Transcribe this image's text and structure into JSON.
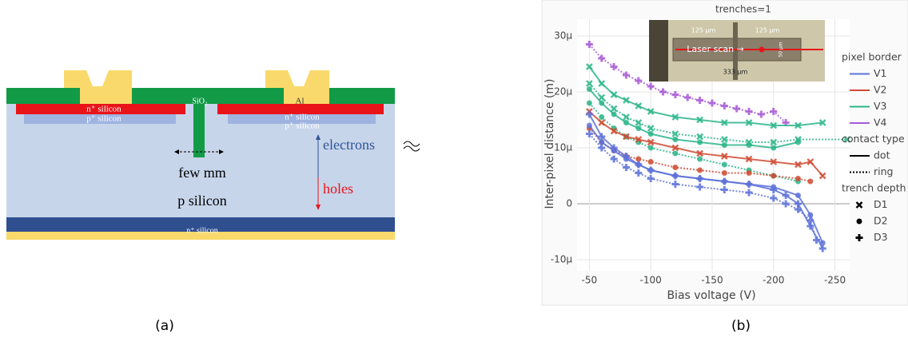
{
  "diagram": {
    "labels": [
      "SiO₂",
      "Al",
      "n⁺ silicon",
      "p⁺ silicon",
      "n⁺ silicon",
      "p⁺ silicon",
      "few mm",
      "electrons",
      "holes",
      "p silicon",
      "n⁺ silicon"
    ]
  },
  "captions": [
    "(a)",
    "(b)"
  ],
  "inset": {
    "labels": [
      "125 µm",
      "125 µm",
      "Laser scan →",
      "333 µm",
      "50 µm"
    ]
  },
  "chart_data": {
    "type": "line",
    "title": "trenches=1",
    "x_label": "Bias voltage (V)",
    "y_label": "Inter-pixel distance (m)",
    "xlim": [
      -40,
      -262
    ],
    "xticks": [
      -50,
      -100,
      -150,
      -200,
      -250
    ],
    "ylim": [
      -1.2e-05,
      3.3e-05
    ],
    "yticks": [
      {
        "value": -1e-05,
        "label": "-10µ"
      },
      0,
      {
        "value": 1e-05,
        "label": "10µ"
      },
      {
        "value": 2e-05,
        "label": "20µ"
      },
      {
        "value": 3e-05,
        "label": "30µ"
      }
    ],
    "grid": true,
    "legend": {
      "groups": [
        {
          "title": "pixel border",
          "entries": [
            {
              "label": "V1",
              "color": "#5e72d9"
            },
            {
              "label": "V2",
              "color": "#cf4b32"
            },
            {
              "label": "V3",
              "color": "#2bb58a"
            },
            {
              "label": "V4",
              "color": "#a85ad6"
            }
          ]
        },
        {
          "title": "contact type",
          "entries": [
            {
              "label": "dot",
              "dash": "solid"
            },
            {
              "label": "ring",
              "dash": "dotted"
            }
          ]
        },
        {
          "title": "trench depth",
          "entries": [
            {
              "label": "D1",
              "marker": "x"
            },
            {
              "label": "D2",
              "marker": "circle"
            },
            {
              "label": "D3",
              "marker": "plus"
            }
          ]
        }
      ]
    },
    "series": [
      {
        "border": "V4",
        "contact": "ring",
        "depth": "D3",
        "x": [
          -50,
          -60,
          -70,
          -80,
          -90,
          -100,
          -110,
          -120,
          -130,
          -140,
          -150,
          -160,
          -170,
          -180,
          -190,
          -200,
          -210
        ],
        "values": [
          2.85e-05,
          2.6e-05,
          2.45e-05,
          2.3e-05,
          2.2e-05,
          2.1e-05,
          2e-05,
          1.95e-05,
          1.9e-05,
          1.85e-05,
          1.8e-05,
          1.75e-05,
          1.7e-05,
          1.65e-05,
          1.6e-05,
          1.65e-05,
          1.45e-05
        ]
      },
      {
        "border": "V3",
        "contact": "dot",
        "depth": "D1",
        "x": [
          -50,
          -60,
          -70,
          -80,
          -90,
          -100,
          -120,
          -140,
          -160,
          -180,
          -200,
          -220,
          -240
        ],
        "values": [
          2.45e-05,
          2.15e-05,
          1.95e-05,
          1.85e-05,
          1.75e-05,
          1.65e-05,
          1.55e-05,
          1.5e-05,
          1.45e-05,
          1.45e-05,
          1.4e-05,
          1.4e-05,
          1.45e-05
        ]
      },
      {
        "border": "V3",
        "contact": "ring",
        "depth": "D1",
        "x": [
          -50,
          -60,
          -70,
          -80,
          -90,
          -100,
          -120,
          -140,
          -160,
          -180,
          -200,
          -220,
          -260
        ],
        "values": [
          2.15e-05,
          1.9e-05,
          1.7e-05,
          1.55e-05,
          1.45e-05,
          1.35e-05,
          1.25e-05,
          1.2e-05,
          1.15e-05,
          1.1e-05,
          1.1e-05,
          1.15e-05,
          1.15e-05
        ]
      },
      {
        "border": "V3",
        "contact": "dot",
        "depth": "D2",
        "x": [
          -50,
          -60,
          -70,
          -80,
          -90,
          -100,
          -120,
          -140,
          -160,
          -180,
          -200,
          -220
        ],
        "values": [
          2.05e-05,
          1.8e-05,
          1.6e-05,
          1.45e-05,
          1.35e-05,
          1.25e-05,
          1.15e-05,
          1.1e-05,
          1.05e-05,
          1.05e-05,
          1e-05,
          1.1e-05
        ]
      },
      {
        "border": "V3",
        "contact": "ring",
        "depth": "D2",
        "x": [
          -50,
          -60,
          -70,
          -80,
          -90,
          -100,
          -120,
          -140,
          -160,
          -180,
          -200,
          -220
        ],
        "values": [
          1.8e-05,
          1.55e-05,
          1.35e-05,
          1.2e-05,
          1.1e-05,
          1e-05,
          9e-06,
          8e-06,
          7e-06,
          6e-06,
          5e-06,
          4e-06
        ]
      },
      {
        "border": "V2",
        "contact": "dot",
        "depth": "D1",
        "x": [
          -50,
          -60,
          -70,
          -80,
          -90,
          -100,
          -120,
          -140,
          -160,
          -180,
          -200,
          -220,
          -230,
          -240
        ],
        "values": [
          1.65e-05,
          1.45e-05,
          1.3e-05,
          1.2e-05,
          1.15e-05,
          1.1e-05,
          1e-05,
          9e-06,
          8.5e-06,
          8e-06,
          7.5e-06,
          7e-06,
          7.5e-06,
          5e-06
        ]
      },
      {
        "border": "V2",
        "contact": "ring",
        "depth": "D2",
        "x": [
          -50,
          -60,
          -70,
          -80,
          -90,
          -100,
          -120,
          -140,
          -160,
          -180,
          -200,
          -220,
          -230
        ],
        "values": [
          1.35e-05,
          1.1e-05,
          9.5e-06,
          8.5e-06,
          8e-06,
          7.5e-06,
          6.5e-06,
          6e-06,
          5.5e-06,
          5.5e-06,
          5e-06,
          4.5e-06,
          4e-06
        ]
      },
      {
        "border": "V1",
        "contact": "dot",
        "depth": "D3",
        "x": [
          -50,
          -60,
          -70,
          -80,
          -90,
          -100,
          -120,
          -140,
          -160,
          -180,
          -200,
          -210,
          -220,
          -230,
          -240
        ],
        "values": [
          1.6e-05,
          1.2e-05,
          1e-05,
          8.5e-06,
          7e-06,
          6e-06,
          5e-06,
          4.5e-06,
          4e-06,
          3.5e-06,
          2.5e-06,
          1.5e-06,
          0,
          -4e-06,
          -8e-06
        ]
      },
      {
        "border": "V1",
        "contact": "ring",
        "depth": "D3",
        "x": [
          -50,
          -60,
          -70,
          -80,
          -90,
          -100,
          -120,
          -140,
          -160,
          -180,
          -200,
          -210,
          -220,
          -230,
          -235
        ],
        "values": [
          1.25e-05,
          1e-05,
          8e-06,
          6.5e-06,
          5.5e-06,
          4.5e-06,
          3.5e-06,
          3e-06,
          2.5e-06,
          2e-06,
          1e-06,
          0,
          -1e-06,
          -3e-06,
          -6.5e-06
        ]
      },
      {
        "border": "V1",
        "contact": "dot",
        "depth": "D2",
        "x": [
          -50,
          -60,
          -70,
          -80,
          -90,
          -100,
          -120,
          -140,
          -160,
          -180,
          -200,
          -220,
          -230,
          -240
        ],
        "values": [
          1.4e-05,
          1.1e-05,
          9.5e-06,
          8e-06,
          7e-06,
          6e-06,
          5e-06,
          4.5e-06,
          4e-06,
          3.5e-06,
          3e-06,
          1.5e-06,
          -2e-06,
          -7e-06
        ]
      }
    ]
  }
}
